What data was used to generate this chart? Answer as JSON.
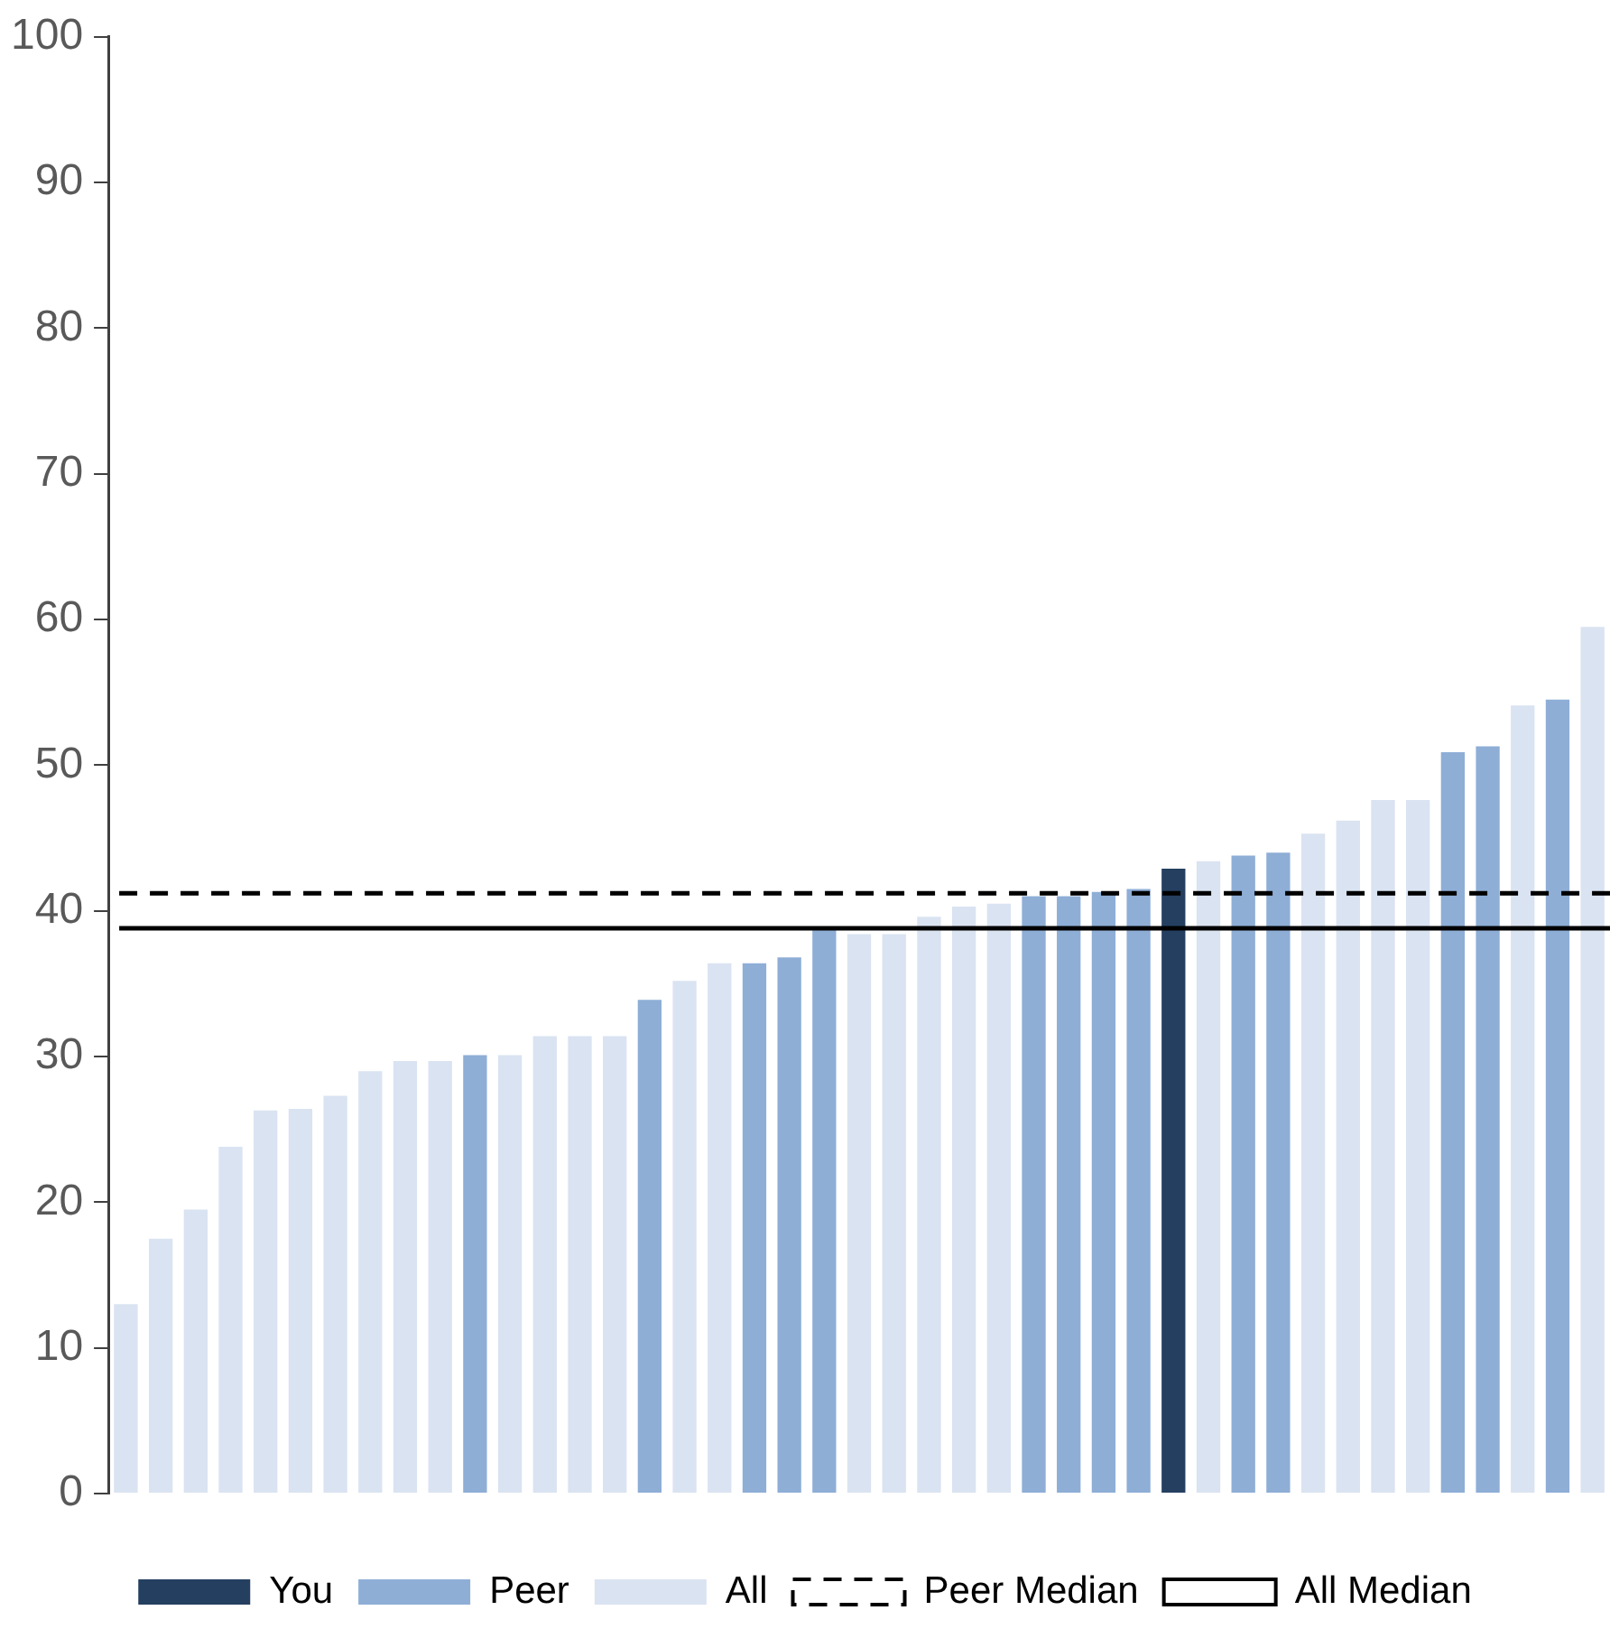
{
  "chart_data": {
    "type": "bar",
    "stacked": true,
    "categories": [
      null,
      null,
      null,
      null,
      null,
      null,
      null,
      null,
      null,
      null,
      null,
      null,
      null,
      null,
      null,
      null,
      null,
      null,
      null,
      null,
      null,
      null,
      null,
      null,
      null,
      null,
      null,
      null,
      null,
      null,
      null,
      null,
      null,
      null,
      null,
      null,
      null,
      null,
      null,
      null,
      null,
      null,
      null
    ],
    "series": [
      {
        "name": "You",
        "color": "#243f60",
        "values": [
          null,
          null,
          null,
          null,
          null,
          null,
          null,
          null,
          null,
          null,
          null,
          null,
          null,
          null,
          null,
          null,
          null,
          null,
          null,
          null,
          null,
          null,
          null,
          null,
          null,
          null,
          null,
          null,
          null,
          null,
          42.9,
          null,
          null,
          null,
          null,
          null,
          null,
          null,
          null,
          null,
          null,
          null,
          null
        ]
      },
      {
        "name": "Peer",
        "color": "#8eaed6",
        "values": [
          null,
          null,
          null,
          null,
          null,
          null,
          null,
          null,
          null,
          null,
          30.1,
          null,
          null,
          null,
          null,
          33.9,
          null,
          null,
          36.4,
          36.8,
          38.8,
          null,
          null,
          null,
          null,
          null,
          41.0,
          41.0,
          41.3,
          41.5,
          null,
          null,
          43.8,
          44.0,
          null,
          null,
          null,
          null,
          50.9,
          51.3,
          null,
          54.5,
          null
        ]
      },
      {
        "name": "All",
        "color": "#dae3f1",
        "values": [
          13.0,
          17.5,
          19.5,
          23.8,
          26.3,
          26.4,
          27.3,
          29.0,
          29.7,
          29.7,
          null,
          30.1,
          31.4,
          31.4,
          31.4,
          null,
          35.2,
          36.4,
          null,
          null,
          null,
          38.4,
          38.4,
          39.6,
          40.3,
          40.5,
          null,
          null,
          null,
          null,
          null,
          43.4,
          null,
          null,
          45.3,
          46.2,
          47.6,
          47.6,
          null,
          null,
          54.1,
          null,
          59.5
        ]
      }
    ],
    "ylim": [
      0,
      100
    ],
    "yticks": [
      0,
      10,
      20,
      30,
      40,
      50,
      60,
      70,
      80,
      90,
      100
    ],
    "grid": false,
    "legend": "bottom",
    "ref_lines": [
      {
        "axis": "y",
        "value": 41.2,
        "label": "Peer Median",
        "color": "#000000",
        "line_style": "dashed"
      },
      {
        "axis": "y",
        "value": 38.8,
        "label": "All Median",
        "color": "#000000",
        "line_style": "solid"
      }
    ]
  }
}
